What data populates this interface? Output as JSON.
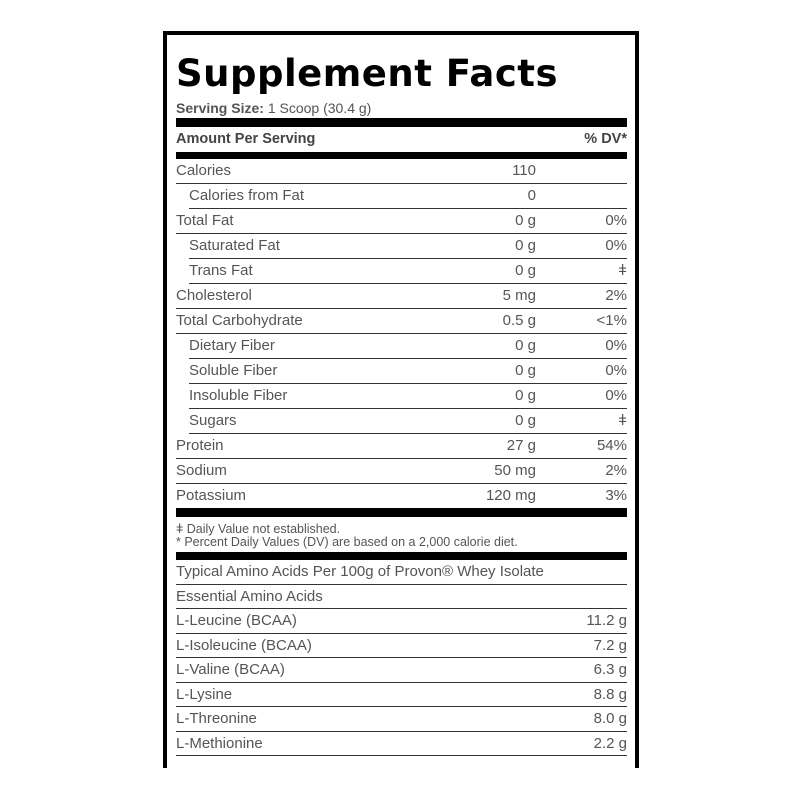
{
  "title": "Supplement Facts",
  "serving": {
    "label": "Serving Size:",
    "value": "1 Scoop (30.4 g)"
  },
  "header": {
    "amount": "Amount Per Serving",
    "dv": "% DV*"
  },
  "nutrients": [
    {
      "name": "Calories",
      "amount": "110",
      "dv": "",
      "indent": false
    },
    {
      "name": "Calories from Fat",
      "amount": "0",
      "dv": "",
      "indent": true
    },
    {
      "name": "Total Fat",
      "amount": "0 g",
      "dv": "0%",
      "indent": false
    },
    {
      "name": "Saturated Fat",
      "amount": "0 g",
      "dv": "0%",
      "indent": true
    },
    {
      "name": "Trans Fat",
      "amount": "0 g",
      "dv": "ǂ",
      "indent": true
    },
    {
      "name": "Cholesterol",
      "amount": "5 mg",
      "dv": "2%",
      "indent": false
    },
    {
      "name": "Total Carbohydrate",
      "amount": "0.5 g",
      "dv": "<1%",
      "indent": false
    },
    {
      "name": "Dietary Fiber",
      "amount": "0 g",
      "dv": "0%",
      "indent": true
    },
    {
      "name": "Soluble Fiber",
      "amount": "0 g",
      "dv": "0%",
      "indent": true
    },
    {
      "name": "Insoluble Fiber",
      "amount": "0 g",
      "dv": "0%",
      "indent": true
    },
    {
      "name": "Sugars",
      "amount": "0 g",
      "dv": "ǂ",
      "indent": true
    },
    {
      "name": "Protein",
      "amount": "27 g",
      "dv": "54%",
      "indent": false
    },
    {
      "name": "Sodium",
      "amount": "50 mg",
      "dv": "2%",
      "indent": false
    },
    {
      "name": "Potassium",
      "amount": "120 mg",
      "dv": "3%",
      "indent": false
    }
  ],
  "footnotes": [
    "ǂ Daily Value not established.",
    "* Percent Daily Values (DV) are based on a 2,000 calorie diet."
  ],
  "amino": {
    "heading": "Typical Amino Acids Per 100g of Provon® Whey Isolate",
    "subheading": "Essential Amino Acids",
    "items": [
      {
        "name": "L-Leucine (BCAA)",
        "amount": "11.2 g"
      },
      {
        "name": "L-Isoleucine (BCAA)",
        "amount": "7.2 g"
      },
      {
        "name": "L-Valine (BCAA)",
        "amount": "6.3 g"
      },
      {
        "name": "L-Lysine",
        "amount": "8.8 g"
      },
      {
        "name": "L-Threonine",
        "amount": "8.0 g"
      },
      {
        "name": "L-Methionine",
        "amount": "2.2 g"
      }
    ]
  }
}
